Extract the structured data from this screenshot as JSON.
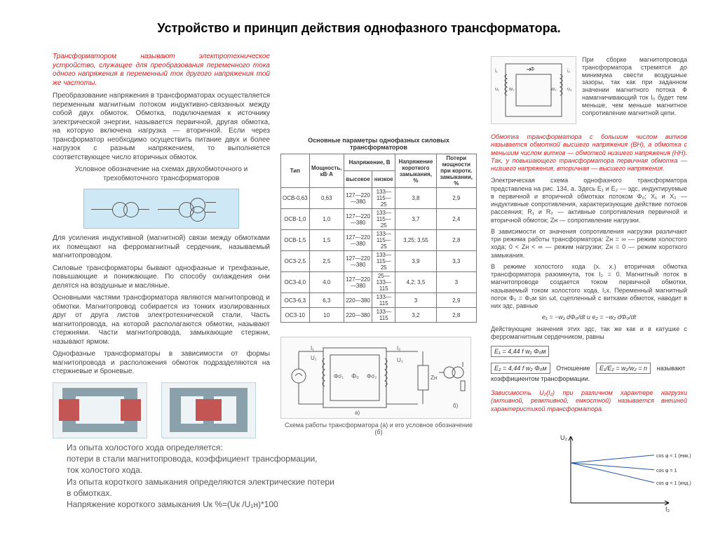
{
  "title": "Устройство и принцип действия однофазного трансформатора.",
  "left": {
    "p_red": "Трансформатором называют электротехническое устройство, служащее для преобразования переменного тока одного напряжения в переменный ток другого напряжения той же частоты.",
    "p1": "Преобразование напряжения в трансформаторах осуществляется переменным магнитным потоком индуктивно-связанных между собой двух обмоток. Обмотка, подключаемая к источнику электрической энергии, называется первичной, другая обмотка, на которую включена нагрузка — вторичной. Если через трансформатор необходимо осуществить питание двух и более нагрузок с разным напряжением, то выполняется соответствующее число вторичных обмоток.",
    "cap1": "Условное обозначение на схемах двухобмоточного и трехобмоточного трансформаторов",
    "p2": "Для усиления индуктивной (магнитной) связи между обмотками их помещают на ферромагнитный сердечник, называемый магнитопроводом.",
    "p3": "Силовые трансформаторы бывают однофазные и трехфазные, повышающие и понижающие. По способу охлаждения они делятся на воздушные и масляные.",
    "p4": "Основными частями трансформатора являются магнитопровод и обмотки. Магнитопровод собирается из тонких изолированных друг от друга листов электротехнической стали. Часть магнитопровода, на которой располагаются обмотки, называют стержнями. Части магнитопровода, замыкающие стержни, называют ярмом.",
    "p5": "Однофазные трансформаторы в зависимости от формы магнитопровода и расположения обмоток подразделяются на стержневые и броневые."
  },
  "mid": {
    "table_title": "Основные параметры однофазных силовых трансформаторов",
    "headers": [
      "Тип",
      "Мощность, кВ·А",
      "высокое",
      "низкое",
      "Напряжение короткого замыкания, %",
      "Потери мощности при коротк. замыкании, %"
    ],
    "group_header": "Напряжение, В",
    "rows": [
      [
        "ОСВ-0,63",
        "0,63",
        "127—220—380",
        "133—115—25",
        "3,8",
        "2,9"
      ],
      [
        "ОСВ-1,0",
        "1,0",
        "127—220—380",
        "133—115—25",
        "3,7",
        "2,4"
      ],
      [
        "ОСВ-1,5",
        "1,5",
        "127—220—380",
        "133—115—25",
        "3,25; 3,55",
        "2,8"
      ],
      [
        "ОСЗ-2,5",
        "2,5",
        "127—220—380",
        "133—115—25",
        "3,9",
        "3,3"
      ],
      [
        "ОСЗ-4,0",
        "4,0",
        "127—220—380",
        "25—133—115",
        "4,2; 3,5",
        "3"
      ],
      [
        "ОСЗ-6,3",
        "6,3",
        "220—380",
        "133—115",
        "3",
        "2,9"
      ],
      [
        "ОСЗ-10",
        "10",
        "220—380",
        "133—115",
        "3,2",
        "2,8"
      ]
    ],
    "schematic_caption": "Схема работы трансформатора (а) и его условное обозначение (б)"
  },
  "right": {
    "p1": "При сборке магнитопровода трансформатора стремятся до минимума свести воздушные зазоры, так как при заданном значении магнитного потока Ф намагничивающий ток I₀ будет тем меньше, чем меньше магнитное сопротивление магнитной цепи.",
    "p_red": "Обмотка трансформатора с большим числом витков называется обмоткой высшего напряжения (ВН), а обмотка с меньшим числом витков — обмоткой низшего напряжения (НН). Так, у повышающего трансформатора первичная обмотка — низшего напряжения, вторичная — высшего напряжения.",
    "p2": "Электрическая схема однофазного трансформатора представлена на рис. 134, а. Здесь E₁ и E₂ — эдс, индуктируемые в первичной и вторичной обмотках потоком Ф₀; X₁ и X₂ — индуктивные сопротивления, характеризующие действие потоков рассеяния; R₁ и R₂ — активные сопротивления первичной и вторичной обмоток; Zн — сопротивление нагрузки.",
    "p3": "В зависимости от значения сопротивления нагрузки различают три режима работы трансформатора: Zн = ∞ — режим холостого хода; 0 < Zн < ∞ — режим нагрузки; Zн = 0 — режим короткого замыкания.",
    "p4": "В режиме холостого хода (х. х.) вторичная обмотка трансформатора разомкнута, ток I₂ = 0. Магнитный поток в магнитопроводе создается током первичной обмотки, называемый током холостого хода, I₁х. Переменный магнитный поток Ф₀ = Ф₀м sin ωt, сцепленный с витками обмоток, наводит в них эдс, равные",
    "formula_small": "e₁ = −w₁ dΦ₀/dt   и   e₂ = −w₂ dΦ₀/dt",
    "p5": "Действующие значения этих эдс, так же как и в катушке с ферромагнитным сердечником, равны",
    "formula_e1": "E₁ = 4,44 f w₁ Φ₀м",
    "formula_e2": "E₂ = 4,44 f w₂ Φ₀м",
    "ratio_label": "Отношение",
    "formula_ratio": "E₁/E₂ = w₁/w₂ = n",
    "p6": "называют коэффициентом трансформации.",
    "p_red2": "Зависимость U₂(I₂) при различном характере нагрузки (активной, реактивной, емкостной) называется внешней характеристикой трансформатора."
  },
  "bottom": {
    "l1": "Из опыта холостого хода определяется:",
    "l2": "потери в стали магнитопровода, коэффициент трансформации,",
    "l3": "ток холостого хода.",
    "l4": "Из опыта короткого замыкания определяются электрические потери",
    "l5": "в обмотках.",
    "l6": "Напряжение короткого замыкания Uк %=(Uк /U₁н)*100"
  },
  "graph": {
    "ylabel": "U₂",
    "xlabel": "I₂",
    "lines": [
      {
        "label": "cos φ < 1 (емк.)",
        "slope": 0.08,
        "color": "#2255aa"
      },
      {
        "label": "cos φ = 1",
        "slope": -0.07,
        "color": "#2255aa"
      },
      {
        "label": "cos φ < 1 (инд.)",
        "slope": -0.2,
        "color": "#2255aa"
      }
    ],
    "axis_color": "#000000",
    "bg": "#ffffff"
  },
  "colors": {
    "red_text": "#cc2222",
    "body_text": "#444444",
    "symbol_bg": "#cfe8f5",
    "core_red": "#c35555",
    "core_gray": "#8aa0ab"
  }
}
